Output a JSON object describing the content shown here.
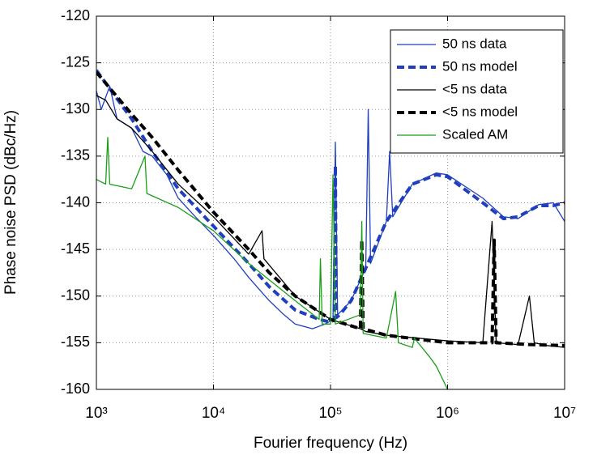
{
  "chart_data": {
    "type": "line",
    "x_label": "Fourier frequency (Hz)",
    "y_label": "Phase noise PSD (dBc/Hz)",
    "xscale": "log",
    "grid": true,
    "legend": "upper right",
    "xlim": [
      1000,
      10000000
    ],
    "ylim": [
      -160,
      -120
    ],
    "xticks": [
      {
        "value": 1000,
        "label": "10³"
      },
      {
        "value": 10000,
        "label": "10⁴"
      },
      {
        "value": 100000,
        "label": "10⁵"
      },
      {
        "value": 1000000,
        "label": "10⁶"
      },
      {
        "value": 10000000,
        "label": "10⁷"
      }
    ],
    "yticks": [
      -160,
      -155,
      -150,
      -145,
      -140,
      -135,
      -130,
      -125,
      -120
    ],
    "series": [
      {
        "name": "50 ns data",
        "color": "#1f3fbf",
        "style": "solid",
        "width": 1.3,
        "x": [
          1000,
          1100,
          1300,
          1500,
          2000,
          2500,
          3000,
          4000,
          5000,
          7000,
          10000,
          15000,
          20000,
          30000,
          40000,
          50000,
          70000,
          90000,
          105000,
          110000,
          115000,
          150000,
          200000,
          210000,
          220000,
          300000,
          320000,
          340000,
          500000,
          800000,
          1000000,
          2000000,
          3000000,
          4000000,
          6000000,
          8000000,
          10000000
        ],
        "values": [
          -128,
          -130,
          -127.5,
          -131,
          -132,
          -134.5,
          -135,
          -137,
          -139.5,
          -141.5,
          -143.5,
          -146,
          -148,
          -150.5,
          -152,
          -153,
          -153.5,
          -153,
          -152.5,
          -133.5,
          -152,
          -150.5,
          -147,
          -130,
          -146.5,
          -142,
          -134.5,
          -141.5,
          -138,
          -136.8,
          -137,
          -139.5,
          -141.5,
          -141.7,
          -140.2,
          -140,
          -142
        ]
      },
      {
        "name": "50 ns model",
        "color": "#1f3fbf",
        "style": "dashed",
        "width": 4,
        "x": [
          1000,
          2000,
          3000,
          5000,
          10000,
          20000,
          30000,
          50000,
          80000,
          100000,
          108000,
          110000,
          112000,
          120000,
          150000,
          200000,
          300000,
          500000,
          800000,
          1000000,
          2000000,
          3000000,
          4000000,
          6000000,
          8000000,
          10000000
        ],
        "values": [
          -125.8,
          -131,
          -134.5,
          -138.5,
          -142.5,
          -146.5,
          -149,
          -151.5,
          -152.5,
          -152.8,
          -152.5,
          -136,
          -152.3,
          -152,
          -150.5,
          -147,
          -142,
          -138,
          -137,
          -137.2,
          -140,
          -141.7,
          -141.5,
          -140.3,
          -140.3,
          -140
        ]
      },
      {
        "name": "<5 ns data",
        "color": "#000000",
        "style": "solid",
        "width": 1.3,
        "x": [
          1000,
          1200,
          1500,
          2000,
          3000,
          5000,
          10000,
          20000,
          26000,
          27000,
          50000,
          100000,
          180000,
          200000,
          300000,
          1000000,
          2000000,
          2400000,
          2600000,
          4000000,
          5000000,
          5500000,
          7000000,
          10000000
        ],
        "values": [
          -128.5,
          -129,
          -131,
          -132,
          -134.5,
          -138,
          -141.5,
          -145.5,
          -143,
          -146,
          -150,
          -152.5,
          -153.5,
          -153.8,
          -154.2,
          -154.8,
          -155,
          -142,
          -155,
          -155.2,
          -150,
          -155,
          -155.3,
          -155.5
        ]
      },
      {
        "name": "<5 ns model",
        "color": "#000000",
        "style": "dashed",
        "width": 4,
        "x": [
          1000,
          2000,
          3000,
          5000,
          10000,
          20000,
          30000,
          50000,
          100000,
          180000,
          185000,
          190000,
          300000,
          1000000,
          2400000,
          2500000,
          2600000,
          5000000,
          10000000
        ],
        "values": [
          -126,
          -130.5,
          -133,
          -136.5,
          -141,
          -145,
          -147.5,
          -150,
          -152.5,
          -153.5,
          -144,
          -153.5,
          -154.2,
          -155,
          -155,
          -144,
          -155,
          -155.2,
          -155.3
        ]
      },
      {
        "name": "Scaled AM",
        "color": "#1a9e1a",
        "style": "solid",
        "width": 1.3,
        "x": [
          1000,
          1200,
          1250,
          1300,
          2000,
          2600,
          2700,
          5000,
          10000,
          20000,
          50000,
          80000,
          82000,
          85000,
          100000,
          105000,
          110000,
          180000,
          185000,
          190000,
          300000,
          360000,
          380000,
          500000,
          520000,
          700000,
          800000,
          1000000
        ],
        "values": [
          -137.5,
          -138,
          -133,
          -138,
          -138.5,
          -135,
          -139,
          -140.5,
          -143,
          -146.5,
          -150.5,
          -152.5,
          -146,
          -153,
          -153,
          -137,
          -153,
          -152,
          -142,
          -154,
          -154.5,
          -149.5,
          -155,
          -155.5,
          -154.5,
          -156.5,
          -157.5,
          -160
        ]
      }
    ]
  }
}
